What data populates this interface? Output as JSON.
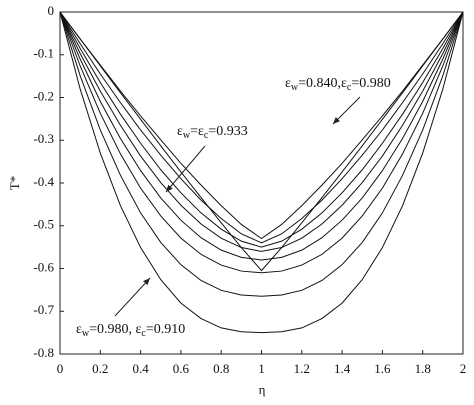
{
  "chart_data": {
    "type": "line",
    "x_label": "η",
    "y_label": "T*",
    "x": [
      0,
      0.1,
      0.2,
      0.3,
      0.4,
      0.5,
      0.6,
      0.7,
      0.8,
      0.9,
      1,
      1.1,
      1.2,
      1.3,
      1.4,
      1.5,
      1.6,
      1.7,
      1.8,
      1.9,
      2
    ],
    "xlim": [
      0,
      2
    ],
    "xticks": [
      0,
      0.2,
      0.4,
      0.6,
      0.8,
      1,
      1.2,
      1.4,
      1.6,
      1.8,
      2
    ],
    "ylim": [
      -0.8,
      0
    ],
    "yticks": [
      0,
      -0.1,
      -0.2,
      -0.3,
      -0.4,
      -0.5,
      -0.6,
      -0.7,
      -0.8
    ],
    "grid": false,
    "series": [
      {
        "color": "#111111",
        "values": [
          0,
          -0.18,
          -0.33,
          -0.453,
          -0.551,
          -0.626,
          -0.681,
          -0.717,
          -0.739,
          -0.748,
          -0.75,
          -0.748,
          -0.739,
          -0.717,
          -0.681,
          -0.626,
          -0.551,
          -0.453,
          -0.33,
          -0.18,
          0
        ]
      },
      {
        "color": "#111111",
        "values": [
          0,
          -0.149,
          -0.276,
          -0.382,
          -0.47,
          -0.539,
          -0.591,
          -0.628,
          -0.651,
          -0.662,
          -0.665,
          -0.662,
          -0.651,
          -0.628,
          -0.591,
          -0.539,
          -0.47,
          -0.382,
          -0.276,
          -0.149,
          0
        ]
      },
      {
        "color": "#111111",
        "values": [
          0,
          -0.126,
          -0.237,
          -0.332,
          -0.412,
          -0.477,
          -0.529,
          -0.567,
          -0.592,
          -0.606,
          -0.61,
          -0.606,
          -0.592,
          -0.567,
          -0.529,
          -0.477,
          -0.412,
          -0.332,
          -0.237,
          -0.126,
          0
        ]
      },
      {
        "color": "#111111",
        "values": [
          0,
          -0.11,
          -0.209,
          -0.296,
          -0.371,
          -0.435,
          -0.487,
          -0.528,
          -0.557,
          -0.574,
          -0.58,
          -0.574,
          -0.557,
          -0.528,
          -0.487,
          -0.435,
          -0.371,
          -0.296,
          -0.209,
          -0.11,
          0
        ]
      },
      {
        "color": "#111111",
        "values": [
          0,
          -0.097,
          -0.185,
          -0.265,
          -0.337,
          -0.399,
          -0.452,
          -0.496,
          -0.529,
          -0.551,
          -0.56,
          -0.551,
          -0.529,
          -0.496,
          -0.452,
          -0.399,
          -0.337,
          -0.265,
          -0.185,
          -0.097,
          0
        ]
      },
      {
        "color": "#111111",
        "values": [
          0,
          -0.085,
          -0.165,
          -0.239,
          -0.307,
          -0.369,
          -0.423,
          -0.47,
          -0.508,
          -0.536,
          -0.55,
          -0.536,
          -0.508,
          -0.47,
          -0.423,
          -0.369,
          -0.307,
          -0.239,
          -0.165,
          -0.085,
          0
        ]
      },
      {
        "color": "#111111",
        "values": [
          0,
          -0.074,
          -0.145,
          -0.212,
          -0.276,
          -0.335,
          -0.39,
          -0.44,
          -0.483,
          -0.519,
          -0.54,
          -0.519,
          -0.483,
          -0.44,
          -0.39,
          -0.335,
          -0.276,
          -0.212,
          -0.145,
          -0.074,
          0
        ]
      },
      {
        "color": "#111111",
        "values": [
          0,
          -0.063,
          -0.124,
          -0.185,
          -0.243,
          -0.299,
          -0.354,
          -0.405,
          -0.453,
          -0.497,
          -0.53,
          -0.497,
          -0.453,
          -0.405,
          -0.354,
          -0.299,
          -0.243,
          -0.185,
          -0.124,
          -0.063,
          0
        ]
      },
      {
        "color": "#111111",
        "values": [
          0,
          -0.063,
          -0.126,
          -0.189,
          -0.251,
          -0.313,
          -0.374,
          -0.434,
          -0.493,
          -0.551,
          -0.605,
          -0.551,
          -0.493,
          -0.434,
          -0.374,
          -0.313,
          -0.251,
          -0.189,
          -0.126,
          -0.063,
          0
        ]
      }
    ],
    "annotations": [
      [
        {
          "text": "ε"
        },
        {
          "sub": "w"
        },
        {
          "text": "=0.840,ε"
        },
        {
          "sub": "c"
        },
        {
          "text": "=0.980"
        }
      ],
      [
        {
          "text": "ε"
        },
        {
          "sub": "w"
        },
        {
          "text": "=ε"
        },
        {
          "sub": "c"
        },
        {
          "text": "=0.933"
        }
      ],
      [
        {
          "text": "ε"
        },
        {
          "sub": "w"
        },
        {
          "text": "=0.980, ε"
        },
        {
          "sub": "c"
        },
        {
          "text": "=0.910"
        }
      ]
    ]
  }
}
